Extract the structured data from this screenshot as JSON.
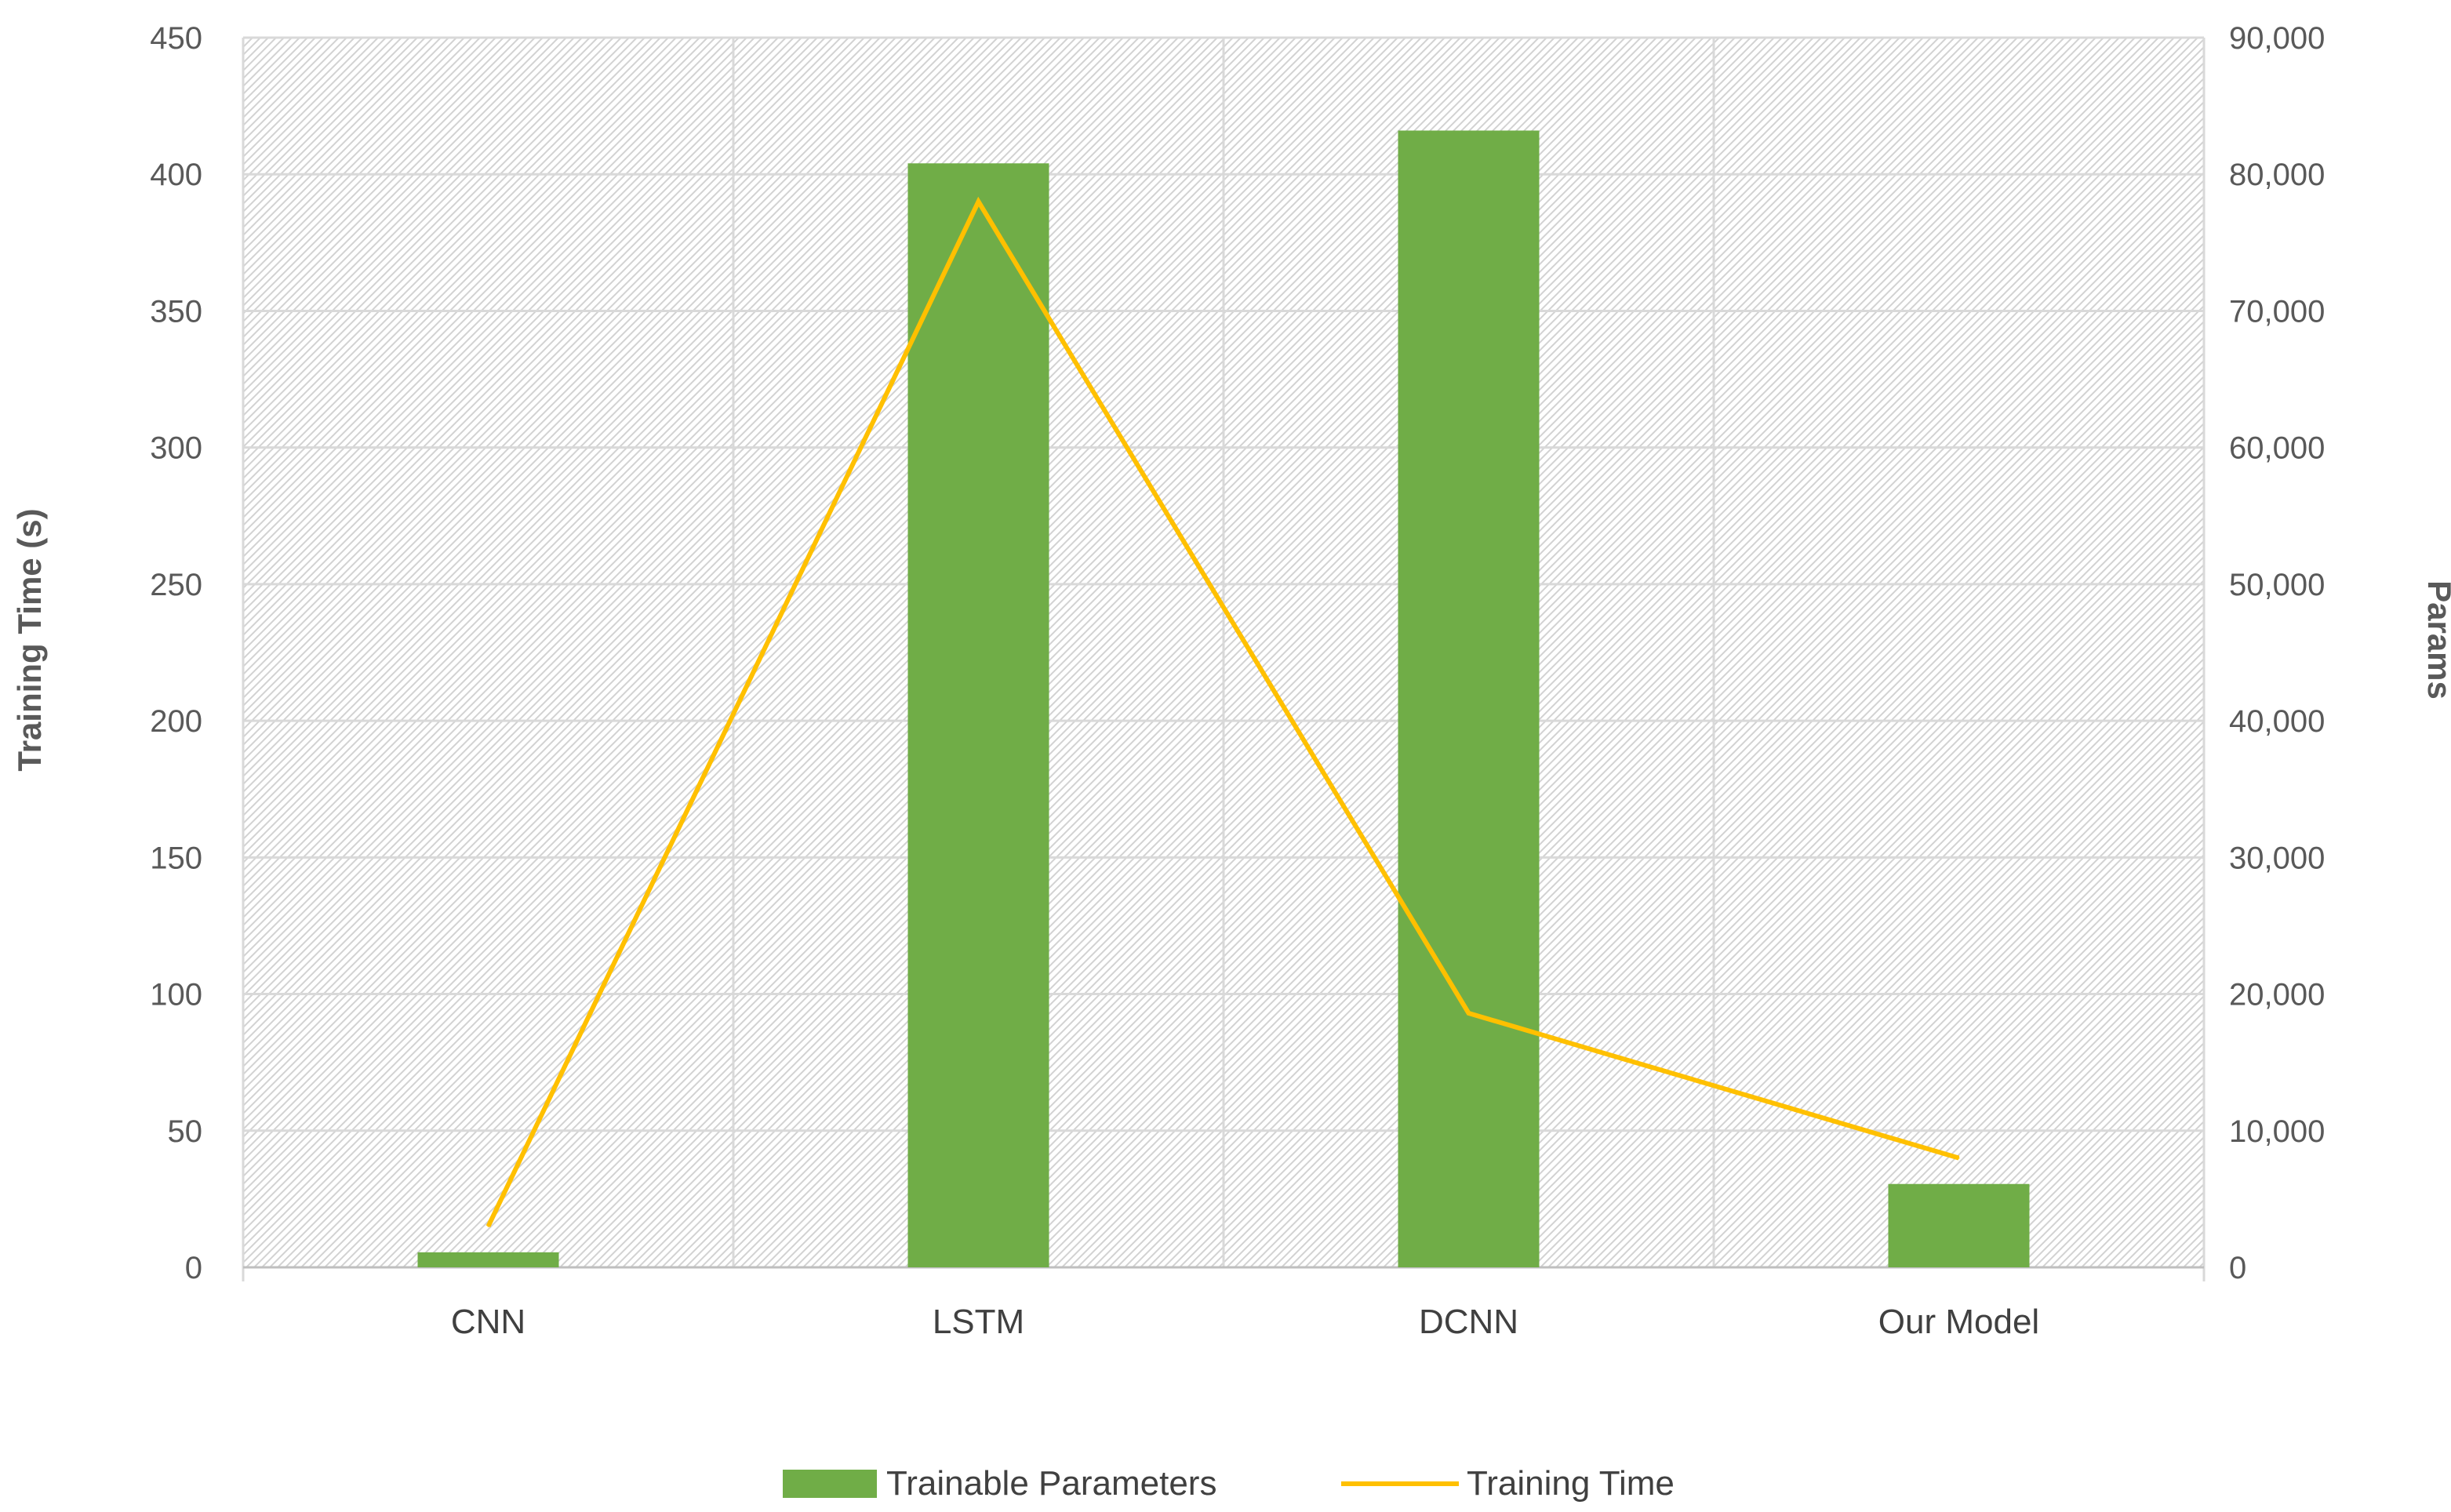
{
  "chart_data": {
    "type": "bar",
    "categories": [
      "CNN",
      "LSTM",
      "DCNN",
      "Our Model"
    ],
    "series": [
      {
        "name": "Trainable Parameters",
        "kind": "bar",
        "axis": "right",
        "color": "#70ad47",
        "values": [
          1100,
          80800,
          83200,
          6100
        ]
      },
      {
        "name": "Training Time",
        "kind": "line",
        "axis": "left",
        "color": "#ffc000",
        "values": [
          15,
          390,
          93,
          40
        ]
      }
    ],
    "ylabel": "Training Time (s)",
    "y2label": "Params",
    "ylim": [
      0,
      450
    ],
    "y2lim": [
      0,
      90000
    ],
    "yticks": [
      "0",
      "50",
      "100",
      "150",
      "200",
      "250",
      "300",
      "350",
      "400",
      "450"
    ],
    "y2ticks": [
      "0",
      "10,000",
      "20,000",
      "30,000",
      "40,000",
      "50,000",
      "60,000",
      "70,000",
      "80,000",
      "90,000"
    ],
    "grid": true,
    "legend_position": "bottom",
    "background_pattern": "diagonal-hatch"
  }
}
